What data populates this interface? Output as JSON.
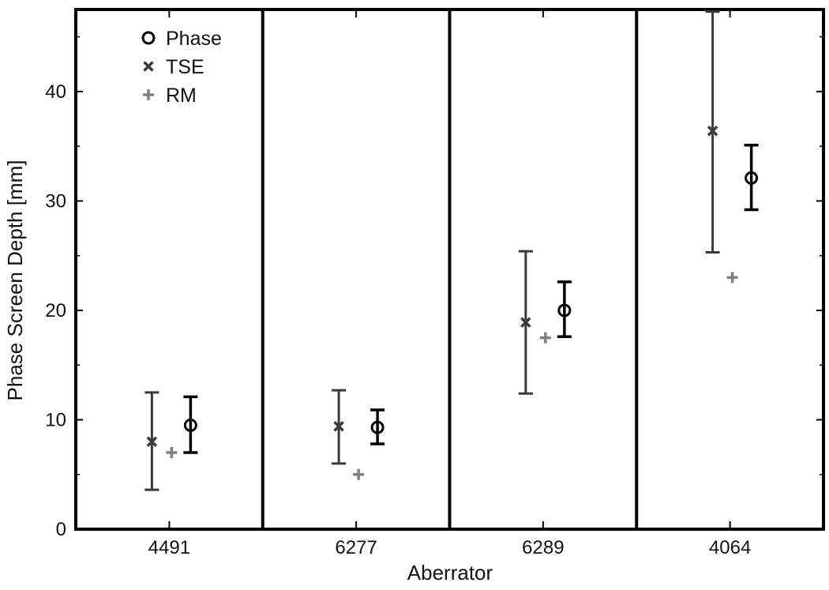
{
  "chart_data": {
    "type": "scatter",
    "xlabel": "Aberrator",
    "ylabel": "Phase Screen Depth [mm]",
    "categories": [
      "4491",
      "6277",
      "6289",
      "4064"
    ],
    "ylim": [
      0,
      47.5
    ],
    "yticks": [
      0,
      10,
      20,
      30,
      40
    ],
    "grid": false,
    "legend_position": "top-left",
    "series": [
      {
        "name": "Phase",
        "marker": "circle",
        "color": "#000000",
        "values": [
          9.5,
          9.3,
          20.0,
          32.1
        ],
        "error_low": [
          7.0,
          7.8,
          17.6,
          29.2
        ],
        "error_high": [
          12.1,
          10.9,
          22.6,
          35.1
        ]
      },
      {
        "name": "TSE",
        "marker": "x",
        "color": "#3a3a3a",
        "values": [
          8.0,
          9.4,
          18.9,
          36.4
        ],
        "error_low": [
          3.6,
          6.0,
          12.4,
          25.3
        ],
        "error_high": [
          12.5,
          12.7,
          25.4,
          47.3
        ]
      },
      {
        "name": "RM",
        "marker": "plus",
        "color": "#808080",
        "values": [
          7.0,
          5.0,
          17.5,
          23.0
        ]
      }
    ]
  }
}
